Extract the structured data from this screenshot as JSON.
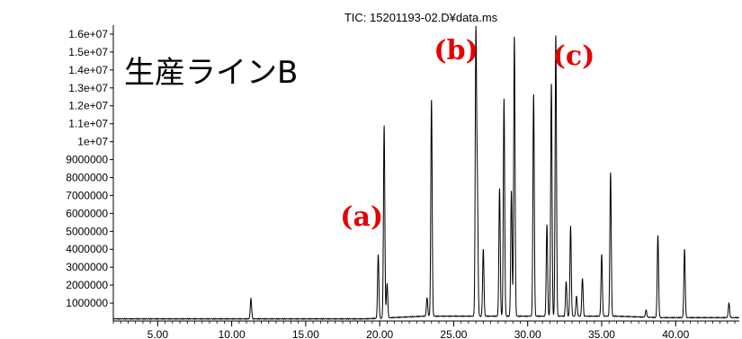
{
  "chart_data": {
    "type": "line",
    "title": "TIC: 15201193-02.D¥data.ms",
    "label": "生産ラインB",
    "xlabel": "",
    "ylabel": "",
    "xlim": [
      2.0,
      44.3
    ],
    "ylim": [
      0,
      16500000
    ],
    "x_ticks": [
      5.0,
      10.0,
      15.0,
      20.0,
      25.0,
      30.0,
      35.0,
      40.0
    ],
    "x_tick_labels": [
      "5.00",
      "10.00",
      "15.00",
      "20.00",
      "25.00",
      "30.00",
      "35.00",
      "40.00"
    ],
    "y_ticks": [
      1000000,
      2000000,
      3000000,
      4000000,
      5000000,
      6000000,
      7000000,
      8000000,
      9000000,
      10000000,
      11000000,
      12000000,
      13000000,
      14000000,
      15000000,
      16000000
    ],
    "y_tick_labels": [
      "1000000",
      "2000000",
      "3000000",
      "4000000",
      "5000000",
      "6000000",
      "7000000",
      "8000000",
      "9000000",
      "1e+07",
      "1.1e+07",
      "1.2e+07",
      "1.3e+07",
      "1.4e+07",
      "1.5e+07",
      "1.6e+07"
    ],
    "series": [
      {
        "peaks": [
          {
            "x": 11.3,
            "y": 1250000
          },
          {
            "x": 19.9,
            "y": 3700000
          },
          {
            "x": 20.3,
            "y": 10900000
          },
          {
            "x": 20.5,
            "y": 2100000
          },
          {
            "x": 23.2,
            "y": 1300000
          },
          {
            "x": 23.5,
            "y": 12400000
          },
          {
            "x": 26.5,
            "y": 15800000
          },
          {
            "x": 26.6,
            "y": 7200000
          },
          {
            "x": 27.0,
            "y": 4000000
          },
          {
            "x": 28.1,
            "y": 7400000
          },
          {
            "x": 28.4,
            "y": 12400000
          },
          {
            "x": 28.9,
            "y": 7300000
          },
          {
            "x": 29.1,
            "y": 15900000
          },
          {
            "x": 30.4,
            "y": 12700000
          },
          {
            "x": 31.3,
            "y": 5400000
          },
          {
            "x": 31.6,
            "y": 13300000
          },
          {
            "x": 31.9,
            "y": 16000000
          },
          {
            "x": 32.6,
            "y": 2200000
          },
          {
            "x": 32.9,
            "y": 5300000
          },
          {
            "x": 33.3,
            "y": 1400000
          },
          {
            "x": 33.7,
            "y": 2400000
          },
          {
            "x": 35.0,
            "y": 3700000
          },
          {
            "x": 35.6,
            "y": 8300000
          },
          {
            "x": 38.0,
            "y": 600000
          },
          {
            "x": 38.8,
            "y": 4800000
          },
          {
            "x": 40.6,
            "y": 4000000
          },
          {
            "x": 43.6,
            "y": 1000000
          }
        ]
      }
    ],
    "annotations": [
      {
        "text": "(a)",
        "x": 20.0,
        "y": 3700000
      },
      {
        "text": "(b)",
        "x": 26.5,
        "y": 15800000
      },
      {
        "text": "(c)",
        "x": 31.9,
        "y": 16000000
      }
    ],
    "grid": false
  }
}
